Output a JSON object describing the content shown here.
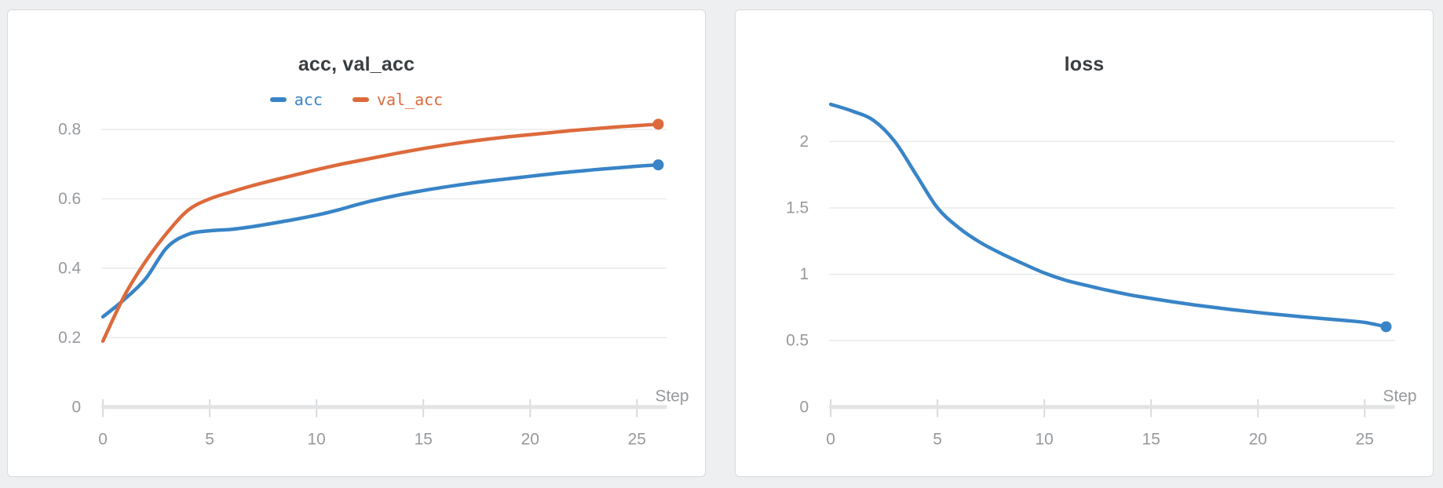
{
  "chart_data": [
    {
      "type": "line",
      "title": "acc, val_acc",
      "xlabel": "Step",
      "legend_position": "top",
      "grid": true,
      "x": [
        0,
        1,
        2,
        3,
        4,
        5,
        6,
        7,
        8,
        9,
        10,
        11,
        12,
        13,
        14,
        15,
        16,
        17,
        18,
        19,
        20,
        21,
        22,
        23,
        24,
        25,
        26
      ],
      "xlim": [
        0,
        26.5
      ],
      "ylim": [
        0,
        0.88
      ],
      "xtick_values": [
        0,
        5,
        10,
        15,
        20,
        25
      ],
      "xtick_labels": [
        "0",
        "5",
        "10",
        "15",
        "20",
        "25"
      ],
      "ytick_values": [
        0,
        0.2,
        0.4,
        0.6,
        0.8
      ],
      "ytick_labels": [
        "0",
        "0.2",
        "0.4",
        "0.6",
        "0.8"
      ],
      "end_markers": true,
      "series": [
        {
          "name": "acc",
          "color": "#3884c7",
          "values": [
            0.26,
            0.31,
            0.37,
            0.46,
            0.498,
            0.508,
            0.512,
            0.52,
            0.53,
            0.541,
            0.553,
            0.568,
            0.585,
            0.6,
            0.613,
            0.624,
            0.634,
            0.643,
            0.651,
            0.658,
            0.665,
            0.672,
            0.678,
            0.684,
            0.689,
            0.694,
            0.698
          ]
        },
        {
          "name": "val_acc",
          "color": "#dd6a3c",
          "values": [
            0.19,
            0.32,
            0.42,
            0.502,
            0.568,
            0.6,
            0.62,
            0.638,
            0.654,
            0.669,
            0.684,
            0.698,
            0.71,
            0.722,
            0.734,
            0.745,
            0.755,
            0.764,
            0.772,
            0.779,
            0.785,
            0.791,
            0.797,
            0.802,
            0.807,
            0.811,
            0.815
          ]
        }
      ]
    },
    {
      "type": "line",
      "title": "loss",
      "xlabel": "Step",
      "legend_position": "none",
      "grid": true,
      "x": [
        0,
        1,
        2,
        3,
        4,
        5,
        6,
        7,
        8,
        9,
        10,
        11,
        12,
        13,
        14,
        15,
        16,
        17,
        18,
        19,
        20,
        21,
        22,
        23,
        24,
        25,
        26
      ],
      "xlim": [
        0,
        26.5
      ],
      "ylim": [
        0,
        2.3
      ],
      "xtick_values": [
        0,
        5,
        10,
        15,
        20,
        25
      ],
      "xtick_labels": [
        "0",
        "5",
        "10",
        "15",
        "20",
        "25"
      ],
      "ytick_values": [
        0,
        0.5,
        1,
        1.5,
        2
      ],
      "ytick_labels": [
        "0",
        "0.5",
        "1",
        "1.5",
        "2"
      ],
      "end_markers": true,
      "series": [
        {
          "name": "loss",
          "color": "#3884c7",
          "values": [
            2.28,
            2.23,
            2.16,
            2.0,
            1.75,
            1.5,
            1.35,
            1.24,
            1.155,
            1.08,
            1.01,
            0.955,
            0.915,
            0.878,
            0.845,
            0.818,
            0.793,
            0.77,
            0.749,
            0.73,
            0.712,
            0.696,
            0.681,
            0.667,
            0.653,
            0.637,
            0.605
          ]
        }
      ]
    }
  ]
}
